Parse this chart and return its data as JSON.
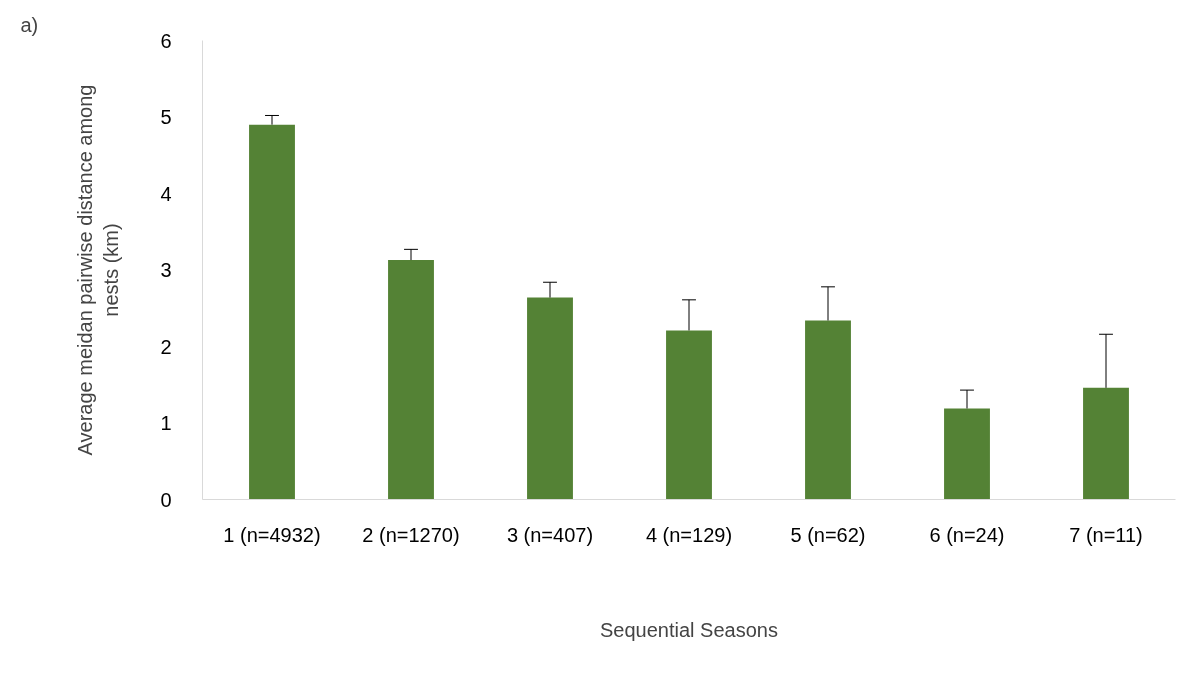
{
  "chart_data": {
    "type": "bar",
    "categories": [
      "1 (n=4932)",
      "2 (n=1270)",
      "3 (n=407)",
      "4 (n=129)",
      "5 (n=62)",
      "6 (n=24)",
      "7 (n=11)"
    ],
    "values": [
      4.9,
      3.13,
      2.64,
      2.21,
      2.34,
      1.19,
      1.46
    ],
    "errors": [
      [
        4.9,
        5.02
      ],
      [
        3.13,
        3.27
      ],
      [
        2.64,
        2.84
      ],
      [
        2.21,
        2.61
      ],
      [
        2.34,
        2.78
      ],
      [
        1.19,
        1.43
      ],
      [
        1.46,
        2.16
      ]
    ],
    "color": "#548235",
    "xlabel": "Sequential Seasons",
    "ylabel": "Average meidan pairwise distance among nests (km)",
    "ylim": [
      0,
      6
    ],
    "yticks": [
      0,
      1,
      2,
      3,
      4,
      5,
      6
    ],
    "grid": false,
    "annotations": [
      "a)"
    ]
  }
}
